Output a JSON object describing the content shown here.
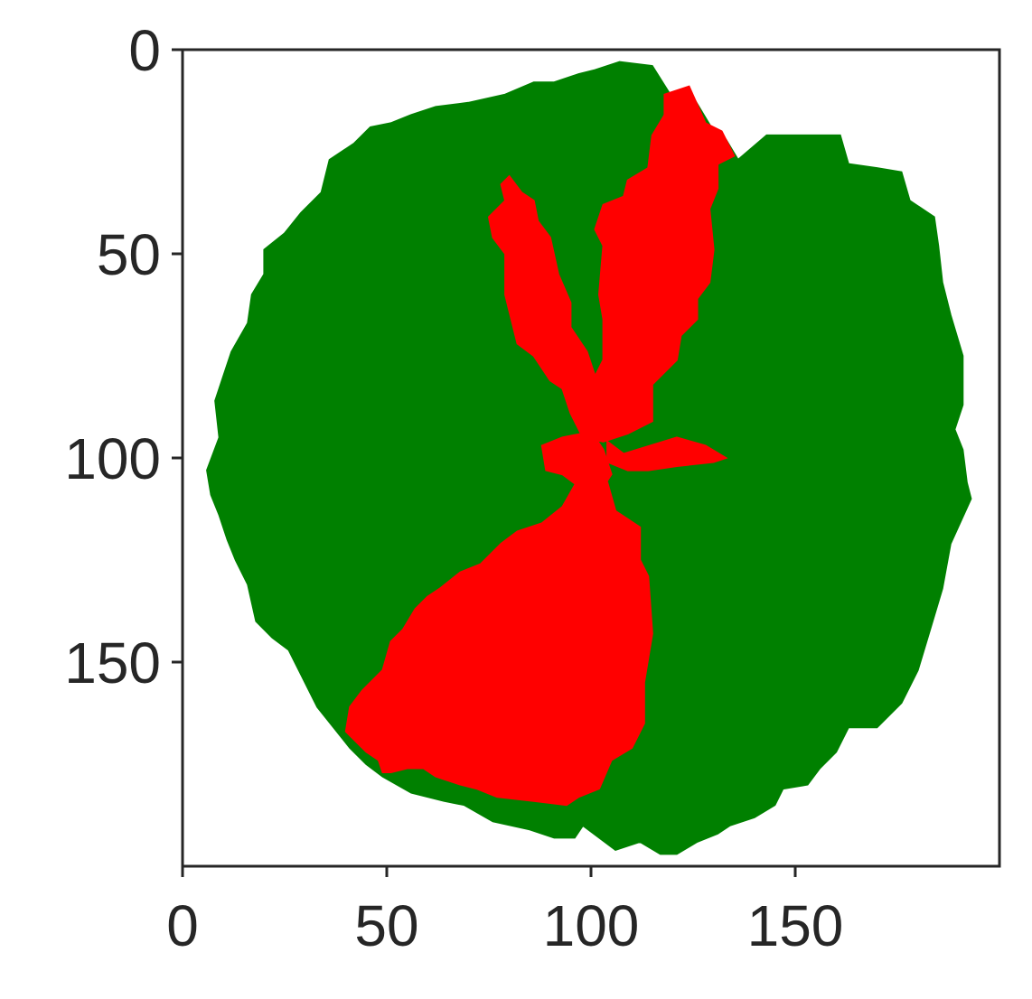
{
  "chart_data": {
    "type": "heatmap",
    "title": "",
    "xlabel": "",
    "ylabel": "",
    "xlim": [
      0,
      200
    ],
    "ylim": [
      200,
      0
    ],
    "x_ticks": [
      0,
      50,
      100,
      150
    ],
    "y_ticks": [
      0,
      50,
      100,
      150
    ],
    "grid": false,
    "legend": "none",
    "background_color": "#ffffff",
    "colors": {
      "green": "#008000",
      "red": "#ff0000",
      "empty": "#ffffff",
      "axes": "#262626"
    },
    "regions": [
      {
        "color": "green",
        "polygon": [
          [
            115,
            4
          ],
          [
            120,
            12
          ],
          [
            124,
            10
          ],
          [
            130,
            20
          ],
          [
            133,
            22
          ],
          [
            136,
            27
          ],
          [
            143,
            21
          ],
          [
            161,
            21
          ],
          [
            163,
            28
          ],
          [
            170,
            29
          ],
          [
            176,
            30
          ],
          [
            178,
            37
          ],
          [
            184,
            41
          ],
          [
            185,
            48
          ],
          [
            186,
            57
          ],
          [
            188,
            65
          ],
          [
            191,
            75
          ],
          [
            191,
            87
          ],
          [
            189,
            93
          ],
          [
            191,
            98
          ],
          [
            192,
            106
          ],
          [
            193,
            110
          ],
          [
            188,
            121
          ],
          [
            186,
            132
          ],
          [
            183,
            142
          ],
          [
            180,
            152
          ],
          [
            176,
            160
          ],
          [
            170,
            166
          ],
          [
            163,
            166
          ],
          [
            160,
            172
          ],
          [
            156,
            176
          ],
          [
            153,
            180
          ],
          [
            147,
            181
          ],
          [
            145,
            185
          ],
          [
            140,
            188
          ],
          [
            134,
            190
          ],
          [
            131,
            192
          ],
          [
            126,
            194
          ],
          [
            121,
            197
          ],
          [
            117,
            197
          ],
          [
            112,
            194
          ],
          [
            106,
            196
          ],
          [
            98,
            190
          ],
          [
            96,
            193
          ],
          [
            91,
            193
          ],
          [
            85,
            191
          ],
          [
            76,
            189
          ],
          [
            69,
            185
          ],
          [
            64,
            184
          ],
          [
            56,
            182
          ],
          [
            49,
            178
          ],
          [
            45,
            175
          ],
          [
            41,
            171
          ],
          [
            37,
            166
          ],
          [
            33,
            161
          ],
          [
            29,
            153
          ],
          [
            26,
            147
          ],
          [
            22,
            144
          ],
          [
            18,
            140
          ],
          [
            16,
            131
          ],
          [
            13,
            125
          ],
          [
            11,
            120
          ],
          [
            9,
            114
          ],
          [
            7,
            109
          ],
          [
            6,
            103
          ],
          [
            9,
            95
          ],
          [
            8,
            86
          ],
          [
            10,
            80
          ],
          [
            12,
            74
          ],
          [
            16,
            67
          ],
          [
            17,
            60
          ],
          [
            20,
            55
          ],
          [
            20,
            49
          ],
          [
            25,
            45
          ],
          [
            29,
            40
          ],
          [
            34,
            35
          ],
          [
            36,
            27
          ],
          [
            42,
            23
          ],
          [
            46,
            19
          ],
          [
            51,
            18
          ],
          [
            56,
            16
          ],
          [
            62,
            14
          ],
          [
            70,
            13
          ],
          [
            79,
            11
          ],
          [
            86,
            8
          ],
          [
            91,
            8
          ],
          [
            97,
            6
          ],
          [
            101,
            5
          ],
          [
            107,
            3
          ]
        ]
      },
      {
        "color": "red",
        "polygon": [
          [
            118,
            11
          ],
          [
            124,
            9
          ],
          [
            128,
            18
          ],
          [
            132,
            20
          ],
          [
            135,
            26
          ],
          [
            131,
            28
          ],
          [
            131,
            34
          ],
          [
            129,
            39
          ],
          [
            130,
            49
          ],
          [
            129,
            57
          ],
          [
            126,
            61
          ],
          [
            126,
            66
          ],
          [
            122,
            70
          ],
          [
            121,
            76
          ],
          [
            115,
            82
          ],
          [
            115,
            91
          ],
          [
            109,
            94
          ],
          [
            103,
            96
          ],
          [
            98,
            95
          ],
          [
            95,
            89
          ],
          [
            93,
            83
          ],
          [
            90,
            81
          ],
          [
            86,
            75
          ],
          [
            82,
            72
          ],
          [
            80,
            64
          ],
          [
            79,
            60
          ],
          [
            79,
            50
          ],
          [
            76,
            46
          ],
          [
            75,
            41
          ],
          [
            79,
            37
          ],
          [
            78,
            33
          ],
          [
            80,
            31
          ],
          [
            83,
            35
          ],
          [
            86,
            37
          ],
          [
            87,
            42
          ],
          [
            90,
            46
          ],
          [
            92,
            55
          ],
          [
            95,
            62
          ],
          [
            95,
            68
          ],
          [
            99,
            74
          ],
          [
            101,
            80
          ],
          [
            103,
            76
          ],
          [
            103,
            66
          ],
          [
            102,
            60
          ],
          [
            103,
            48
          ],
          [
            101,
            44
          ],
          [
            103,
            38
          ],
          [
            108,
            36
          ],
          [
            109,
            32
          ],
          [
            114,
            29
          ],
          [
            115,
            21
          ],
          [
            118,
            16
          ]
        ]
      },
      {
        "color": "red",
        "polygon": [
          [
            104,
            96
          ],
          [
            108,
            99
          ],
          [
            121,
            95
          ],
          [
            128,
            97
          ],
          [
            133,
            100
          ],
          [
            130,
            101
          ],
          [
            121,
            102
          ],
          [
            114,
            103
          ],
          [
            109,
            103
          ],
          [
            104,
            101
          ]
        ]
      },
      {
        "color": "red",
        "polygon": [
          [
            88,
            97
          ],
          [
            93,
            95
          ],
          [
            98,
            94
          ],
          [
            101,
            95
          ],
          [
            103,
            98
          ],
          [
            105,
            104
          ],
          [
            103,
            107
          ],
          [
            97,
            107
          ],
          [
            93,
            104
          ],
          [
            89,
            103
          ]
        ]
      },
      {
        "color": "red",
        "polygon": [
          [
            97,
            105
          ],
          [
            104,
            106
          ],
          [
            106,
            113
          ],
          [
            112,
            117
          ],
          [
            112,
            125
          ],
          [
            114,
            129
          ],
          [
            115,
            143
          ],
          [
            113,
            155
          ],
          [
            113,
            165
          ],
          [
            110,
            171
          ],
          [
            105,
            174
          ],
          [
            102,
            181
          ],
          [
            97,
            183
          ],
          [
            94,
            185
          ],
          [
            86,
            184
          ],
          [
            77,
            183
          ],
          [
            72,
            181
          ],
          [
            68,
            180
          ],
          [
            62,
            178
          ],
          [
            59,
            176
          ],
          [
            55,
            176
          ],
          [
            51,
            177
          ],
          [
            49,
            177
          ],
          [
            48,
            174
          ],
          [
            45,
            172
          ],
          [
            43,
            170
          ],
          [
            40,
            167
          ],
          [
            41,
            161
          ],
          [
            44,
            157
          ],
          [
            49,
            152
          ],
          [
            51,
            145
          ],
          [
            54,
            142
          ],
          [
            57,
            137
          ],
          [
            60,
            134
          ],
          [
            63,
            132
          ],
          [
            68,
            128
          ],
          [
            73,
            126
          ],
          [
            78,
            121
          ],
          [
            82,
            118
          ],
          [
            88,
            116
          ],
          [
            93,
            112
          ]
        ]
      }
    ]
  }
}
